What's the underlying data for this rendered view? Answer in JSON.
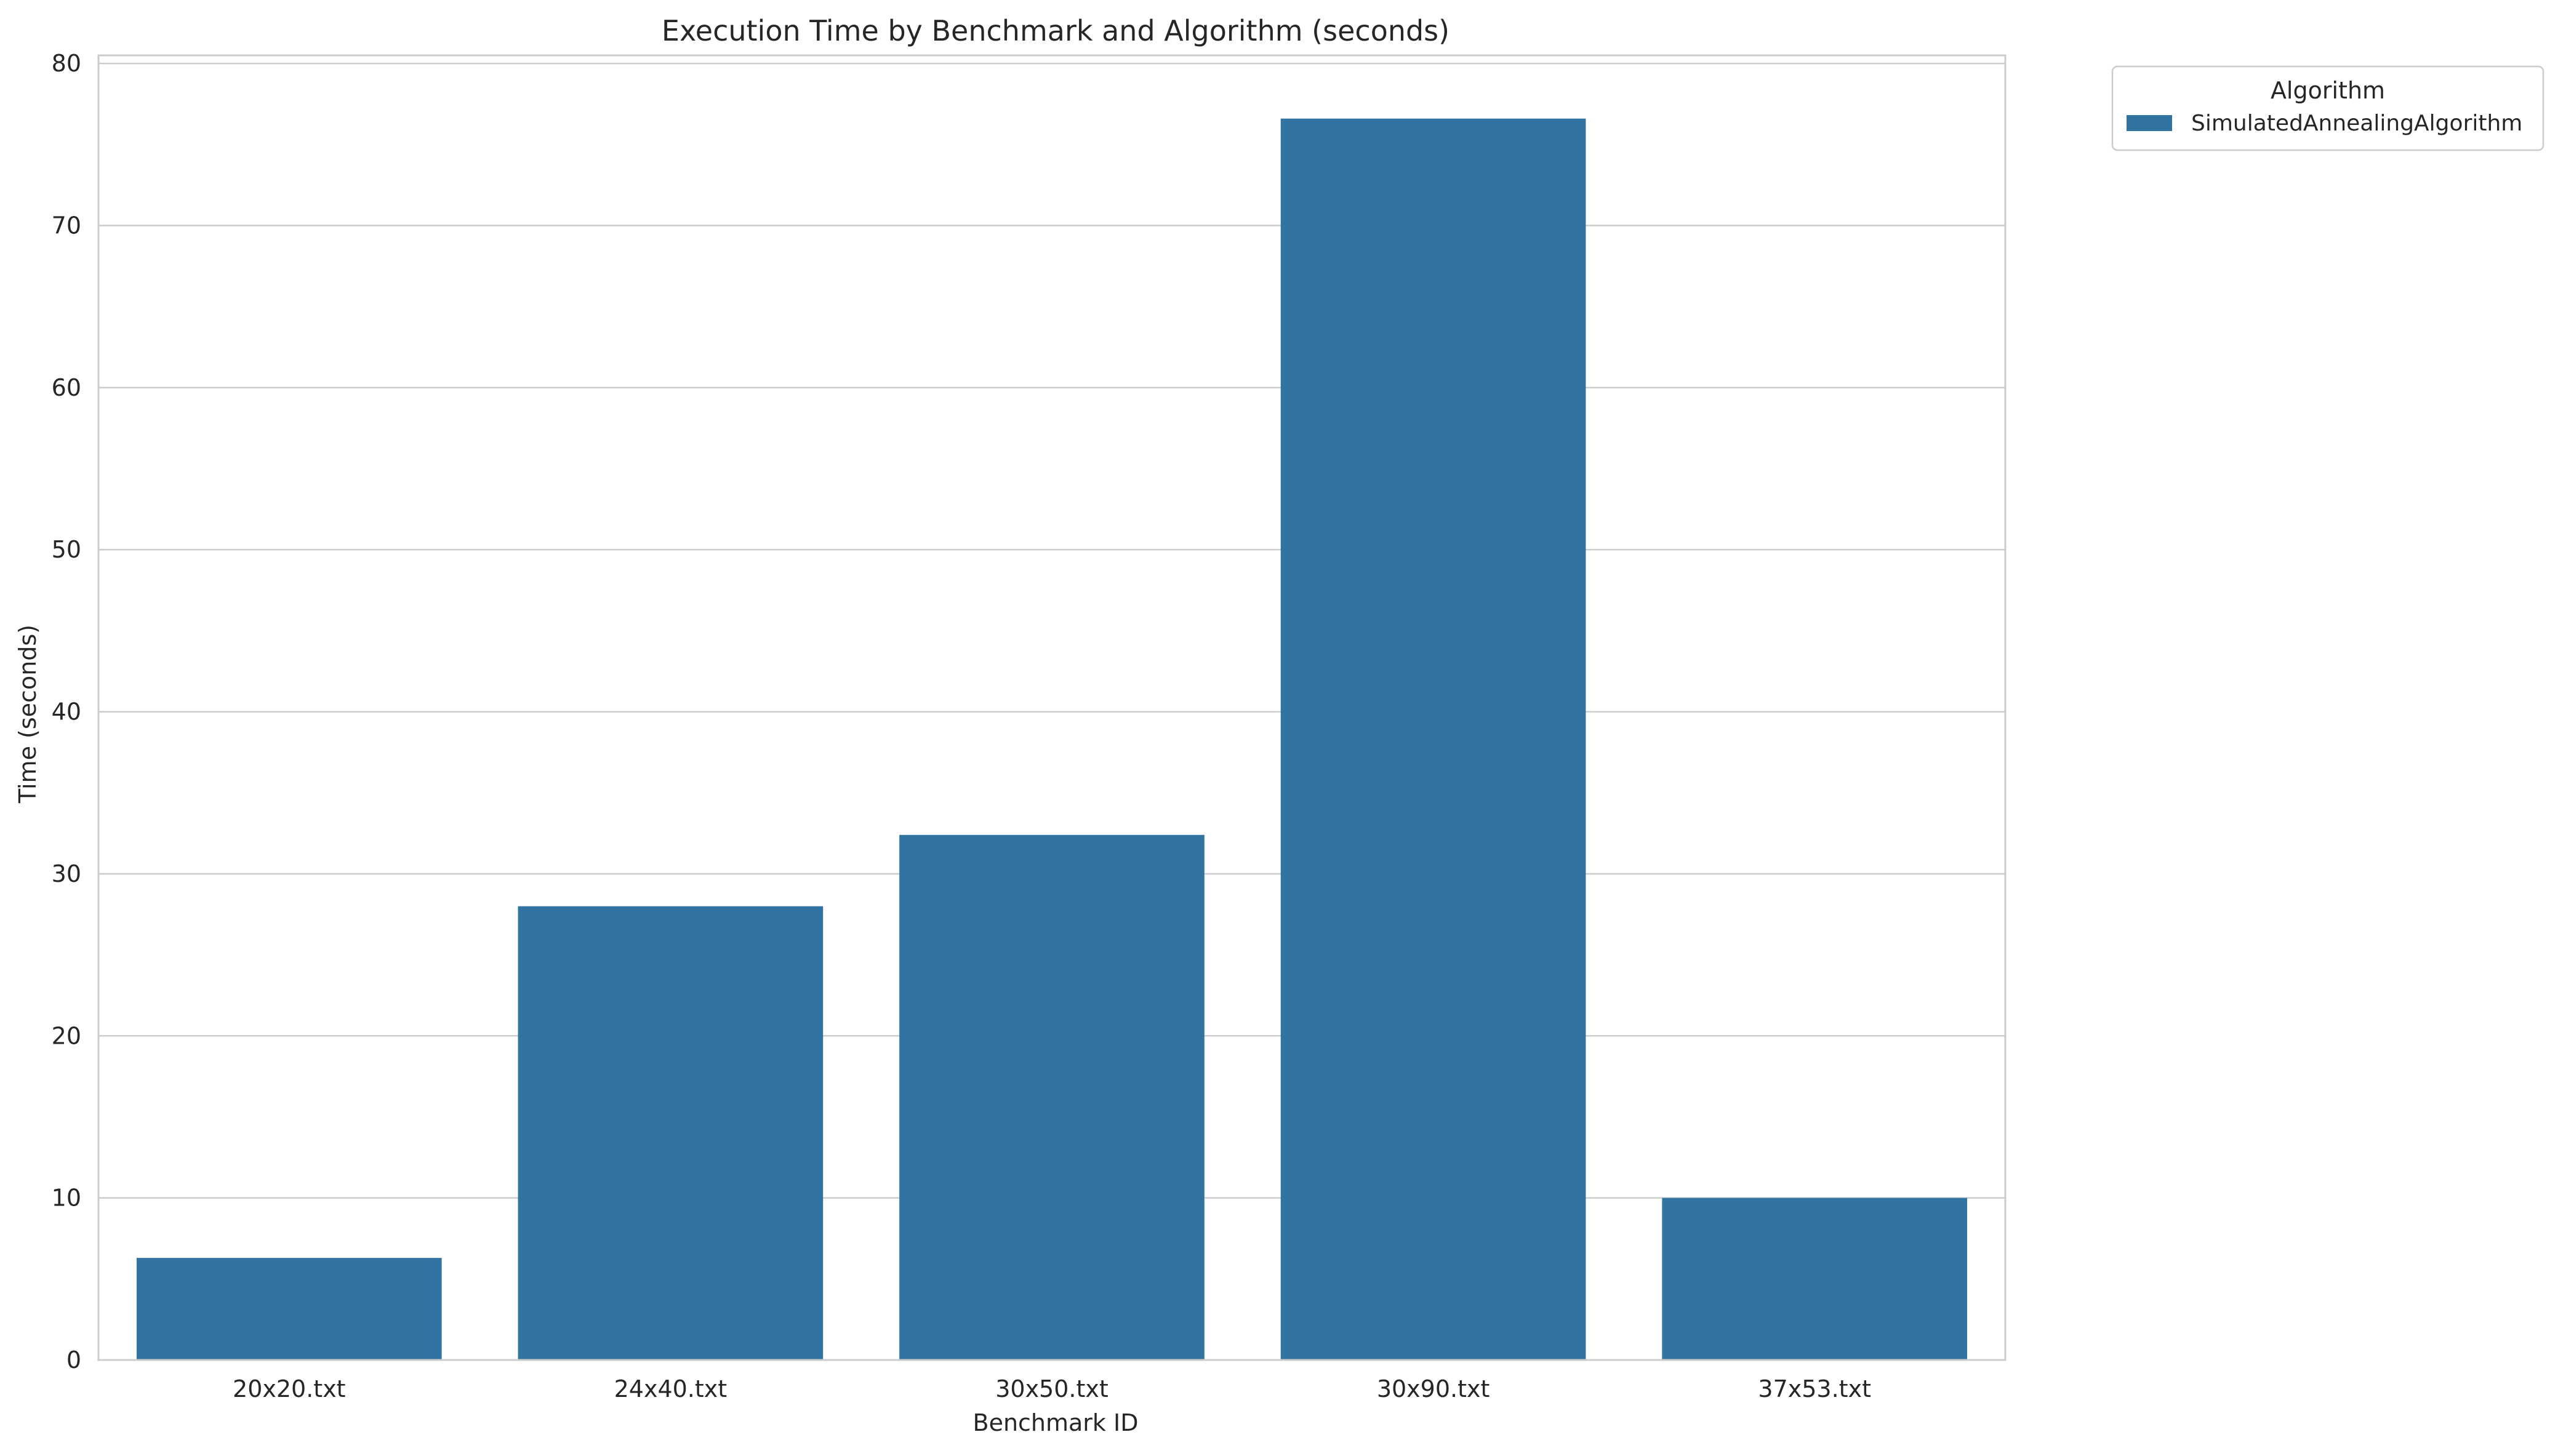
{
  "chart_data": {
    "type": "bar",
    "title": "Execution Time by Benchmark and Algorithm (seconds)",
    "xlabel": "Benchmark ID",
    "ylabel": "Time (seconds)",
    "categories": [
      "20x20.txt",
      "24x40.txt",
      "30x50.txt",
      "30x90.txt",
      "37x53.txt"
    ],
    "series": [
      {
        "name": "SimulatedAnnealingAlgorithm",
        "values": [
          6.3,
          28.0,
          32.4,
          76.6,
          10.0
        ],
        "color": "#3274a1"
      }
    ],
    "ylim": [
      0,
      80.5
    ],
    "yticks": [
      0,
      10,
      20,
      30,
      40,
      50,
      60,
      70,
      80
    ],
    "grid": true,
    "legend": {
      "title": "Algorithm",
      "placement": "outside-top-right"
    },
    "colors": {
      "grid": "#cccccc",
      "spine": "#cccccc",
      "text": "#262626"
    }
  }
}
